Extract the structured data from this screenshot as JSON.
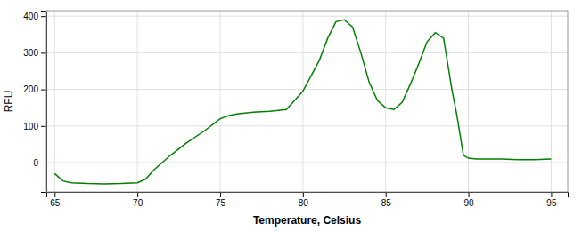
{
  "chart_data": {
    "type": "line",
    "xlabel": "Temperature, Celsius",
    "ylabel": "RFU",
    "x": [
      65,
      65.5,
      66,
      67,
      68,
      69,
      70,
      70.5,
      71,
      72,
      73,
      74,
      75,
      75.5,
      76,
      77,
      78,
      79,
      80,
      81,
      81.5,
      82,
      82.5,
      83,
      83.5,
      84,
      84.5,
      85,
      85.5,
      86,
      86.5,
      87,
      87.5,
      88,
      88.5,
      89,
      89.3,
      89.7,
      90,
      90.5,
      91,
      92,
      93,
      94,
      95
    ],
    "values": [
      -30,
      -50,
      -55,
      -57,
      -58,
      -57,
      -55,
      -45,
      -20,
      20,
      55,
      85,
      120,
      128,
      133,
      138,
      140,
      145,
      195,
      280,
      340,
      385,
      390,
      370,
      300,
      220,
      170,
      150,
      145,
      165,
      215,
      270,
      330,
      355,
      340,
      200,
      130,
      20,
      12,
      10,
      10,
      10,
      8,
      8,
      10
    ],
    "color": "#008000",
    "xlim": [
      64.5,
      96.0
    ],
    "ylim": [
      -80,
      415
    ],
    "xticks": [
      65,
      70,
      75,
      80,
      85,
      90,
      95
    ],
    "yticks": [
      0,
      100,
      200,
      300,
      400
    ],
    "grid": true
  }
}
